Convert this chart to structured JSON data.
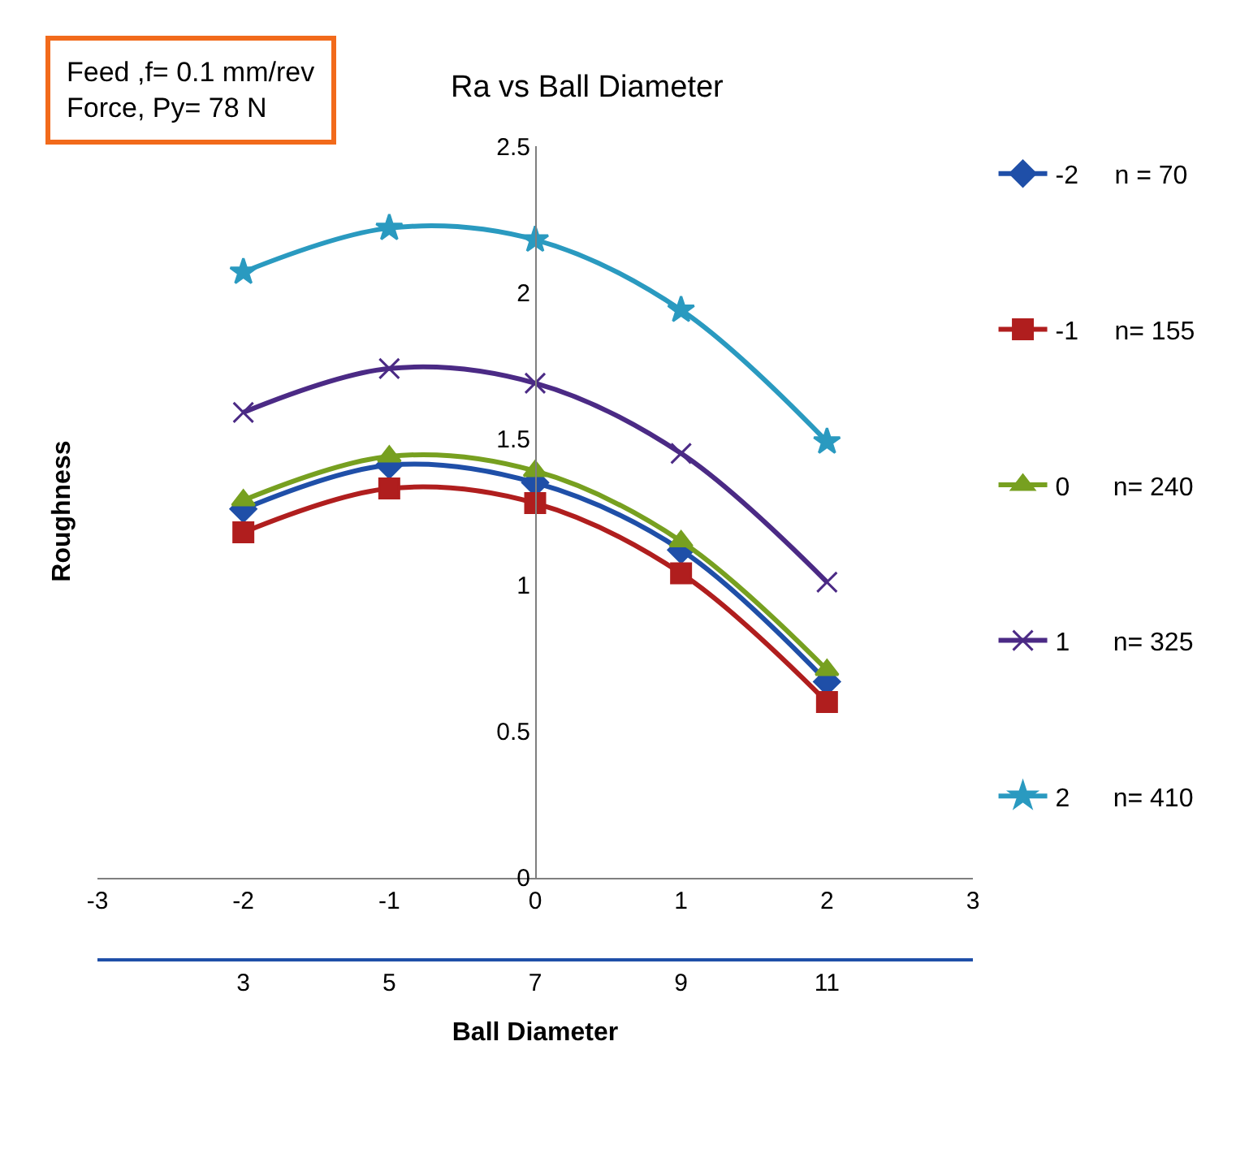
{
  "chart_data": {
    "type": "line",
    "title": "Ra vs Ball Diameter",
    "xlabel": "Ball Diameter",
    "ylabel": "Roughness",
    "annotations": [
      "Feed ,f= 0.1 mm/rev\nForce, Py= 78 N"
    ],
    "x": [
      -2,
      -1,
      0,
      1,
      2
    ],
    "xlim": [
      -3,
      3
    ],
    "xticks": [
      -3,
      -2,
      -1,
      0,
      1,
      2,
      3
    ],
    "x2lim": [
      1,
      13
    ],
    "x2ticks": [
      3,
      5,
      7,
      9,
      11
    ],
    "ylim": [
      0,
      2.5
    ],
    "yticks": [
      0,
      0.5,
      1,
      1.5,
      2,
      2.5
    ],
    "legend": "right",
    "line_style": "solid",
    "series": [
      {
        "name": "-2     n = 70",
        "color": "#1f4fa8",
        "marker": "diamond",
        "values": [
          1.26,
          1.41,
          1.35,
          1.12,
          0.67
        ]
      },
      {
        "name": "-1     n= 155",
        "color": "#b01e1e",
        "marker": "square",
        "values": [
          1.18,
          1.33,
          1.28,
          1.04,
          0.6
        ]
      },
      {
        "name": "0      n= 240",
        "color": "#77a020",
        "marker": "triangle",
        "values": [
          1.29,
          1.44,
          1.39,
          1.15,
          0.71
        ]
      },
      {
        "name": "1      n= 325",
        "color": "#4b2a85",
        "marker": "cross",
        "values": [
          1.59,
          1.74,
          1.69,
          1.45,
          1.01
        ]
      },
      {
        "name": "2      n= 410",
        "color": "#2a9ac0",
        "marker": "star",
        "values": [
          2.07,
          2.22,
          2.18,
          1.94,
          1.49
        ]
      }
    ]
  }
}
